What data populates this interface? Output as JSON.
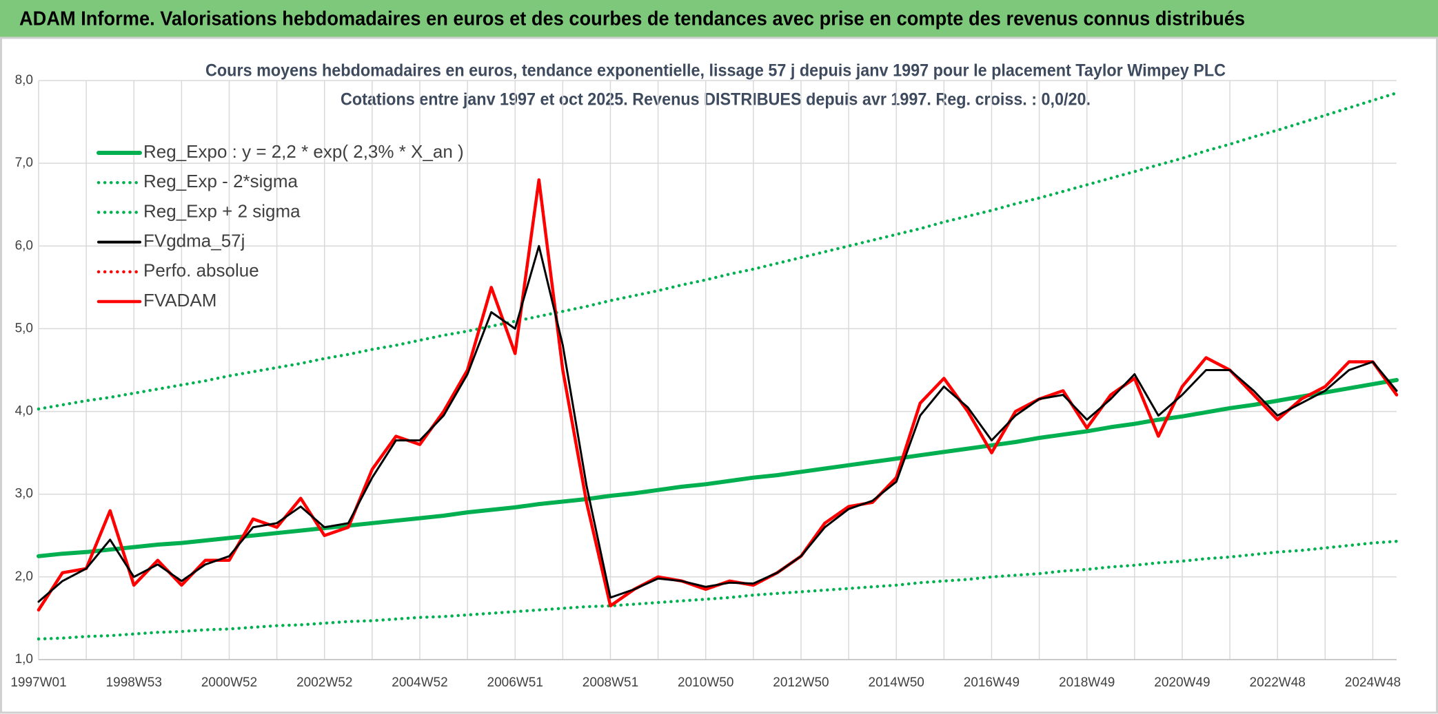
{
  "chart_data": {
    "type": "line",
    "header": "ADAM Informe. Valorisations hebdomadaires en euros et des courbes de tendances avec prise en compte des revenus connus distribués",
    "title": "Cours moyens hebdomadaires en euros, tendance exponentielle, lissage 57 j depuis janv 1997 pour le placement Taylor Wimpey PLC",
    "subtitle": "Cotations entre janv 1997 et oct 2025. Revenus DISTRIBUES depuis avr 1997. Reg. croiss. : 0,0/20.",
    "categories": [
      "1997W01",
      null,
      null,
      null,
      "1998W53",
      null,
      null,
      null,
      "2000W52",
      null,
      null,
      null,
      "2002W52",
      null,
      null,
      null,
      "2004W52",
      null,
      null,
      null,
      "2006W51",
      null,
      null,
      null,
      "2008W51",
      null,
      null,
      null,
      "2010W50",
      null,
      null,
      null,
      "2012W50",
      null,
      null,
      null,
      "2014W50",
      null,
      null,
      null,
      "2016W49",
      null,
      null,
      null,
      "2018W49",
      null,
      null,
      null,
      "2020W49",
      null,
      null,
      null,
      "2022W48",
      null,
      null,
      null,
      "2024W48",
      null
    ],
    "ylim": [
      1,
      8
    ],
    "yticks": [
      {
        "value": 1,
        "label": "1,0"
      },
      {
        "value": 2,
        "label": "2,0"
      },
      {
        "value": 3,
        "label": "3,0"
      },
      {
        "value": 4,
        "label": "4,0"
      },
      {
        "value": 5,
        "label": "5,0"
      },
      {
        "value": 6,
        "label": "6,0"
      },
      {
        "value": 7,
        "label": "7,0"
      },
      {
        "value": 8,
        "label": "8,0"
      }
    ],
    "grid": true,
    "legend": "upper-left",
    "series": [
      {
        "name": "Reg_Expo : y = 2,2 * exp( 2,3% *  X_an )",
        "color": "#00b050",
        "style": "solid",
        "values": [
          2.25,
          2.28,
          2.3,
          2.33,
          2.36,
          2.39,
          2.41,
          2.44,
          2.47,
          2.5,
          2.53,
          2.56,
          2.59,
          2.62,
          2.65,
          2.68,
          2.71,
          2.74,
          2.78,
          2.81,
          2.84,
          2.88,
          2.91,
          2.94,
          2.98,
          3.01,
          3.05,
          3.09,
          3.12,
          3.16,
          3.2,
          3.23,
          3.27,
          3.31,
          3.35,
          3.39,
          3.43,
          3.47,
          3.51,
          3.55,
          3.59,
          3.63,
          3.68,
          3.72,
          3.76,
          3.81,
          3.85,
          3.9,
          3.94,
          3.99,
          4.04,
          4.08,
          4.13,
          4.18,
          4.23,
          4.28,
          4.33,
          4.38
        ]
      },
      {
        "name": "Reg_Exp - 2*sigma",
        "color": "#00b050",
        "style": "dotted",
        "values": [
          1.25,
          1.26,
          1.28,
          1.29,
          1.31,
          1.33,
          1.34,
          1.36,
          1.37,
          1.39,
          1.41,
          1.42,
          1.44,
          1.46,
          1.47,
          1.49,
          1.51,
          1.52,
          1.54,
          1.56,
          1.58,
          1.6,
          1.62,
          1.64,
          1.65,
          1.67,
          1.69,
          1.71,
          1.73,
          1.75,
          1.78,
          1.8,
          1.82,
          1.84,
          1.86,
          1.88,
          1.9,
          1.93,
          1.95,
          1.97,
          2.0,
          2.02,
          2.04,
          2.07,
          2.09,
          2.12,
          2.14,
          2.17,
          2.19,
          2.22,
          2.24,
          2.27,
          2.3,
          2.32,
          2.35,
          2.38,
          2.41,
          2.43
        ]
      },
      {
        "name": "Reg_Exp + 2 sigma",
        "color": "#00b050",
        "style": "dotted",
        "values": [
          4.03,
          4.08,
          4.13,
          4.17,
          4.22,
          4.27,
          4.32,
          4.37,
          4.43,
          4.48,
          4.53,
          4.58,
          4.64,
          4.69,
          4.75,
          4.8,
          4.86,
          4.92,
          4.97,
          5.03,
          5.09,
          5.15,
          5.21,
          5.27,
          5.34,
          5.4,
          5.46,
          5.53,
          5.59,
          5.66,
          5.72,
          5.79,
          5.86,
          5.93,
          6.0,
          6.07,
          6.14,
          6.21,
          6.29,
          6.36,
          6.43,
          6.51,
          6.58,
          6.66,
          6.74,
          6.82,
          6.9,
          6.98,
          7.06,
          7.15,
          7.23,
          7.32,
          7.4,
          7.49,
          7.58,
          7.67,
          7.76,
          7.85
        ]
      },
      {
        "name": "FVgdma_57j",
        "color": "#000000",
        "style": "solid",
        "values": [
          1.7,
          1.95,
          2.1,
          2.45,
          2.0,
          2.15,
          1.95,
          2.15,
          2.25,
          2.6,
          2.65,
          2.85,
          2.6,
          2.65,
          3.2,
          3.65,
          3.65,
          3.95,
          4.45,
          5.2,
          5.0,
          6.0,
          4.8,
          3.1,
          1.75,
          1.85,
          1.98,
          1.95,
          1.88,
          1.93,
          1.92,
          2.05,
          2.25,
          2.6,
          2.82,
          2.92,
          3.15,
          3.95,
          4.3,
          4.05,
          3.65,
          3.95,
          4.15,
          4.2,
          3.9,
          4.15,
          4.45,
          3.95,
          4.2,
          4.5,
          4.5,
          4.25,
          3.95,
          4.1,
          4.25,
          4.5,
          4.6,
          4.25
        ]
      },
      {
        "name": "Perfo. absolue",
        "color": "#ff0000",
        "style": "dotted",
        "values": [
          1.6,
          2.05,
          2.1,
          2.8,
          1.9,
          2.2,
          1.9,
          2.2,
          2.2,
          2.7,
          2.6,
          2.95,
          2.5,
          2.6,
          3.3,
          3.7,
          3.6,
          4.0,
          4.5,
          5.5,
          4.7,
          6.8,
          4.5,
          2.9,
          1.65,
          1.85,
          2.0,
          1.95,
          1.85,
          1.95,
          1.9,
          2.05,
          2.25,
          2.65,
          2.85,
          2.9,
          3.2,
          4.1,
          4.4,
          4.0,
          3.5,
          4.0,
          4.15,
          4.25,
          3.8,
          4.2,
          4.4,
          3.7,
          4.3,
          4.65,
          4.5,
          4.2,
          3.9,
          4.15,
          4.3,
          4.6,
          4.6,
          4.2
        ]
      },
      {
        "name": "FVADAM",
        "color": "#ff0000",
        "style": "solid",
        "values": [
          1.6,
          2.05,
          2.1,
          2.8,
          1.9,
          2.2,
          1.9,
          2.2,
          2.2,
          2.7,
          2.6,
          2.95,
          2.5,
          2.6,
          3.3,
          3.7,
          3.6,
          4.0,
          4.5,
          5.5,
          4.7,
          6.8,
          4.5,
          2.9,
          1.65,
          1.85,
          2.0,
          1.95,
          1.85,
          1.95,
          1.9,
          2.05,
          2.25,
          2.65,
          2.85,
          2.9,
          3.2,
          4.1,
          4.4,
          4.0,
          3.5,
          4.0,
          4.15,
          4.25,
          3.8,
          4.2,
          4.4,
          3.7,
          4.3,
          4.65,
          4.5,
          4.2,
          3.9,
          4.15,
          4.3,
          4.6,
          4.6,
          4.2
        ]
      }
    ]
  }
}
